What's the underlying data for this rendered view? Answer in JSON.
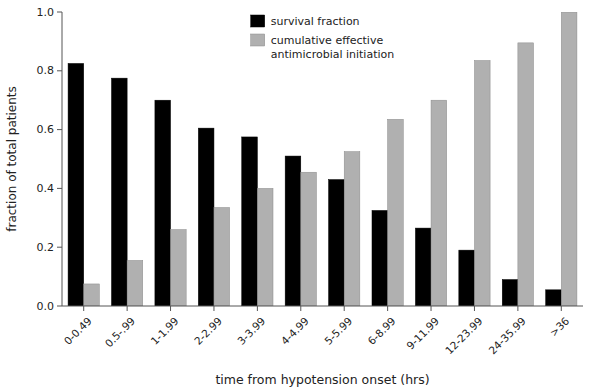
{
  "chart_data": {
    "type": "bar",
    "xlabel": "time from hypotension onset (hrs)",
    "ylabel": "fraction of total patients",
    "categories": [
      "0-0.49",
      "0.5-.99",
      "1-1.99",
      "2-2.99",
      "3-3.99",
      "4-4.99",
      "5-5.99",
      "6-8.99",
      "9-11.99",
      "12-23.99",
      "24-35.99",
      ">36"
    ],
    "series": [
      {
        "name": "survival fraction",
        "color": "#000000",
        "values": [
          0.825,
          0.775,
          0.7,
          0.605,
          0.575,
          0.51,
          0.43,
          0.325,
          0.265,
          0.19,
          0.09,
          0.055
        ]
      },
      {
        "name": "cumulative effective\nantimicrobial initiation",
        "color": "#b0b0b0",
        "values": [
          0.075,
          0.155,
          0.26,
          0.335,
          0.4,
          0.455,
          0.525,
          0.635,
          0.7,
          0.835,
          0.895,
          1.0
        ]
      }
    ],
    "ylim": [
      0,
      1.0
    ],
    "yticks": [
      {
        "value": 0.0,
        "label": "0.0"
      },
      {
        "value": 0.2,
        "label": "0.2"
      },
      {
        "value": 0.4,
        "label": "0.4"
      },
      {
        "value": 0.6,
        "label": "0.6"
      },
      {
        "value": 0.8,
        "label": "0.8"
      },
      {
        "value": 1.0,
        "label": "1.0"
      }
    ],
    "grid": false,
    "legend": "upper center"
  }
}
